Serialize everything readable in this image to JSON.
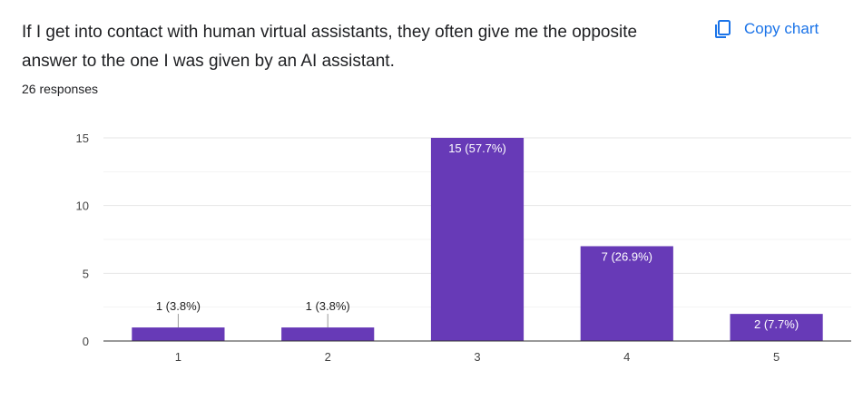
{
  "question": "If I get into contact with human virtual assistants, they often give me the opposite answer to the one I was given by an AI assistant.",
  "responses": "26 responses",
  "copy_label": "Copy chart",
  "icons": {
    "copy": "copy-icon"
  },
  "colors": {
    "bar": "#673ab7",
    "accent": "#1a73e8"
  },
  "chart_data": {
    "type": "bar",
    "categories": [
      "1",
      "2",
      "3",
      "4",
      "5"
    ],
    "values": [
      1,
      1,
      15,
      7,
      2
    ],
    "data_labels": [
      "1 (3.8%)",
      "1 (3.8%)",
      "15 (57.7%)",
      "7 (26.9%)",
      "2 (7.7%)"
    ],
    "yticks": [
      0,
      5,
      10,
      15
    ],
    "ylim": [
      0,
      15
    ],
    "grid": true
  }
}
